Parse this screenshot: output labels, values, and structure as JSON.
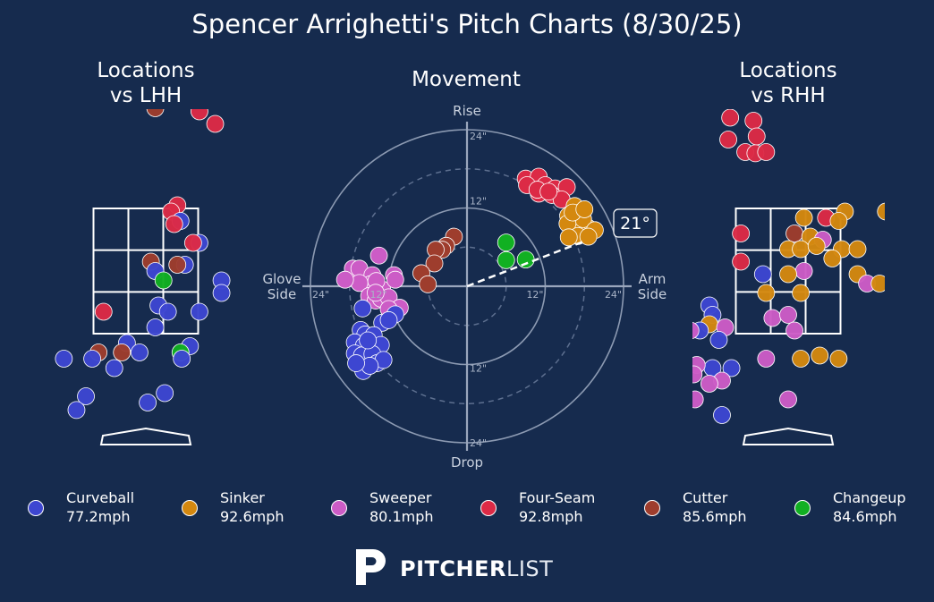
{
  "title": "Spencer Arrighetti's Pitch Charts (8/30/25)",
  "brand": {
    "bold": "PITCHER",
    "light": "LIST"
  },
  "legend": [
    {
      "name": "Curveball",
      "speed": "77.2mph",
      "color": "#3d46d1"
    },
    {
      "name": "Sinker",
      "speed": "92.6mph",
      "color": "#d4880f"
    },
    {
      "name": "Sweeper",
      "speed": "80.1mph",
      "color": "#cc5cc6"
    },
    {
      "name": "Four-Seam",
      "speed": "92.8mph",
      "color": "#dc2a46"
    },
    {
      "name": "Cutter",
      "speed": "85.6mph",
      "color": "#9e3d2d"
    },
    {
      "name": "Changeup",
      "speed": "84.6mph",
      "color": "#11b022"
    }
  ],
  "colors": {
    "Curveball": "#3d46d1",
    "Sinker": "#d4880f",
    "Sweeper": "#cc5cc6",
    "Four-Seam": "#dc2a46",
    "Cutter": "#9e3d2d",
    "Changeup": "#11b022"
  },
  "chart_data": [
    {
      "type": "scatter",
      "title": "Locations\nvs LHH",
      "title_lines": [
        "Locations",
        "vs LHH"
      ],
      "x_units": "ft (catcher view, plate_x)",
      "y_units": "ft (plate_z)",
      "xlim": [
        -2.6,
        2.6
      ],
      "ylim": [
        -0.9,
        5.6
      ],
      "strike_zone": {
        "x": [
          -0.83,
          0.83
        ],
        "z": [
          1.5,
          3.5
        ]
      },
      "points": [
        {
          "pitch": "Four-Seam",
          "x": 0.85,
          "z": 5.05
        },
        {
          "pitch": "Four-Seam",
          "x": 1.1,
          "z": 4.85
        },
        {
          "pitch": "Cutter",
          "x": 0.15,
          "z": 5.1
        },
        {
          "pitch": "Four-Seam",
          "x": 0.5,
          "z": 3.55
        },
        {
          "pitch": "Four-Seam",
          "x": 0.4,
          "z": 3.45
        },
        {
          "pitch": "Curveball",
          "x": 0.55,
          "z": 3.3
        },
        {
          "pitch": "Four-Seam",
          "x": 0.45,
          "z": 3.25
        },
        {
          "pitch": "Curveball",
          "x": 0.85,
          "z": 2.95
        },
        {
          "pitch": "Four-Seam",
          "x": 0.75,
          "z": 2.95
        },
        {
          "pitch": "Cutter",
          "x": 0.08,
          "z": 2.65
        },
        {
          "pitch": "Curveball",
          "x": 0.62,
          "z": 2.6
        },
        {
          "pitch": "Cutter",
          "x": 0.5,
          "z": 2.6
        },
        {
          "pitch": "Curveball",
          "x": 0.15,
          "z": 2.5
        },
        {
          "pitch": "Changeup",
          "x": 0.28,
          "z": 2.35
        },
        {
          "pitch": "Curveball",
          "x": 1.2,
          "z": 2.35
        },
        {
          "pitch": "Curveball",
          "x": 1.2,
          "z": 2.15
        },
        {
          "pitch": "Curveball",
          "x": 0.2,
          "z": 1.95
        },
        {
          "pitch": "Curveball",
          "x": 0.35,
          "z": 1.85
        },
        {
          "pitch": "Four-Seam",
          "x": -0.67,
          "z": 1.85
        },
        {
          "pitch": "Curveball",
          "x": 0.85,
          "z": 1.85
        },
        {
          "pitch": "Curveball",
          "x": 0.15,
          "z": 1.6
        },
        {
          "pitch": "Curveball",
          "x": -0.3,
          "z": 1.35
        },
        {
          "pitch": "Curveball",
          "x": 0.7,
          "z": 1.3
        },
        {
          "pitch": "Cutter",
          "x": -0.75,
          "z": 1.2
        },
        {
          "pitch": "Cutter",
          "x": -0.38,
          "z": 1.2
        },
        {
          "pitch": "Curveball",
          "x": -0.1,
          "z": 1.2
        },
        {
          "pitch": "Changeup",
          "x": 0.55,
          "z": 1.2
        },
        {
          "pitch": "Curveball",
          "x": 0.57,
          "z": 1.1
        },
        {
          "pitch": "Curveball",
          "x": -1.3,
          "z": 1.1
        },
        {
          "pitch": "Curveball",
          "x": -0.85,
          "z": 1.1
        },
        {
          "pitch": "Curveball",
          "x": -0.5,
          "z": 0.95
        },
        {
          "pitch": "Curveball",
          "x": -0.95,
          "z": 0.5
        },
        {
          "pitch": "Curveball",
          "x": 0.3,
          "z": 0.55
        },
        {
          "pitch": "Curveball",
          "x": 0.03,
          "z": 0.4
        },
        {
          "pitch": "Curveball",
          "x": -1.1,
          "z": 0.28
        }
      ]
    },
    {
      "type": "scatter",
      "title": "Movement",
      "x_units": "inches horizontal break",
      "y_units": "inches induced vertical break",
      "xlim": [
        -24,
        24
      ],
      "ylim": [
        -24,
        24
      ],
      "rings": [
        12,
        24
      ],
      "dashed_rings": [
        6,
        18
      ],
      "ring_labels": [
        "12\"",
        "24\"",
        "12\"",
        "24\"",
        "12\"",
        "24\"",
        "12\"",
        "24\""
      ],
      "axis_labels": {
        "top": "Rise",
        "bottom": "Drop",
        "left": "Glove\nSide",
        "right": "Arm\nSide"
      },
      "left_lines": [
        "Glove",
        "Side"
      ],
      "right_lines": [
        "Arm",
        "Side"
      ],
      "arm_angle_label": "21°",
      "arm_angle_deg": 21,
      "points": [
        {
          "pitch": "Four-Seam",
          "x": 9,
          "z": 16.5
        },
        {
          "pitch": "Four-Seam",
          "x": 11,
          "z": 16.8
        },
        {
          "pitch": "Four-Seam",
          "x": 12,
          "z": 15.5
        },
        {
          "pitch": "Four-Seam",
          "x": 13.5,
          "z": 15
        },
        {
          "pitch": "Four-Seam",
          "x": 15.3,
          "z": 15.2
        },
        {
          "pitch": "Four-Seam",
          "x": 9.2,
          "z": 15.5
        },
        {
          "pitch": "Four-Seam",
          "x": 11,
          "z": 14.2
        },
        {
          "pitch": "Four-Seam",
          "x": 13,
          "z": 14
        },
        {
          "pitch": "Four-Seam",
          "x": 14.5,
          "z": 13.3
        },
        {
          "pitch": "Four-Seam",
          "x": 10.8,
          "z": 14.8
        },
        {
          "pitch": "Four-Seam",
          "x": 12.5,
          "z": 14.5
        },
        {
          "pitch": "Sinker",
          "x": 17.2,
          "z": 9.4
        },
        {
          "pitch": "Sinker",
          "x": 18.5,
          "z": 9
        },
        {
          "pitch": "Sinker",
          "x": 16.5,
          "z": 10.8
        },
        {
          "pitch": "Sinker",
          "x": 15.5,
          "z": 10.8
        },
        {
          "pitch": "Sinker",
          "x": 16.5,
          "z": 12.3
        },
        {
          "pitch": "Sinker",
          "x": 17.5,
          "z": 11.4
        },
        {
          "pitch": "Sinker",
          "x": 16.8,
          "z": 8.7
        },
        {
          "pitch": "Sinker",
          "x": 16.2,
          "z": 9.8
        },
        {
          "pitch": "Sinker",
          "x": 17.8,
          "z": 10.3
        },
        {
          "pitch": "Sinker",
          "x": 19.6,
          "z": 8.6
        },
        {
          "pitch": "Sinker",
          "x": 15.4,
          "z": 9.6
        },
        {
          "pitch": "Sinker",
          "x": 17,
          "z": 7.7
        },
        {
          "pitch": "Sinker",
          "x": 18.6,
          "z": 7.6
        },
        {
          "pitch": "Sinker",
          "x": 15.6,
          "z": 7.5
        },
        {
          "pitch": "Sinker",
          "x": 16.2,
          "z": 11.3
        },
        {
          "pitch": "Sinker",
          "x": 18,
          "z": 11.8
        },
        {
          "pitch": "Changeup",
          "x": 6,
          "z": 6.7
        },
        {
          "pitch": "Changeup",
          "x": 6,
          "z": 4.0
        },
        {
          "pitch": "Changeup",
          "x": 9.0,
          "z": 4.1
        },
        {
          "pitch": "Cutter",
          "x": -2,
          "z": 7.6
        },
        {
          "pitch": "Cutter",
          "x": -3.2,
          "z": 6.2
        },
        {
          "pitch": "Cutter",
          "x": -3.8,
          "z": 5.6
        },
        {
          "pitch": "Cutter",
          "x": -4.8,
          "z": 5.6
        },
        {
          "pitch": "Cutter",
          "x": -5,
          "z": 3.5
        },
        {
          "pitch": "Cutter",
          "x": -7,
          "z": 2.0
        },
        {
          "pitch": "Cutter",
          "x": -6,
          "z": 0.3
        },
        {
          "pitch": "Sweeper",
          "x": -13.5,
          "z": 4.7
        },
        {
          "pitch": "Sweeper",
          "x": -17.5,
          "z": 2.7
        },
        {
          "pitch": "Sweeper",
          "x": -16.5,
          "z": 2.7
        },
        {
          "pitch": "Sweeper",
          "x": -14.5,
          "z": 1.7
        },
        {
          "pitch": "Sweeper",
          "x": -11.2,
          "z": 1.7
        },
        {
          "pitch": "Sweeper",
          "x": -14.8,
          "z": 0.3
        },
        {
          "pitch": "Sweeper",
          "x": -16.5,
          "z": 0.5
        },
        {
          "pitch": "Sweeper",
          "x": -18.7,
          "z": 1.0
        },
        {
          "pitch": "Sweeper",
          "x": -13,
          "z": -0.5
        },
        {
          "pitch": "Sweeper",
          "x": -15,
          "z": -1.5
        },
        {
          "pitch": "Sweeper",
          "x": -14,
          "z": -2.2
        },
        {
          "pitch": "Sweeper",
          "x": -13.2,
          "z": -1.9
        },
        {
          "pitch": "Sweeper",
          "x": -12,
          "z": -1.7
        },
        {
          "pitch": "Sweeper",
          "x": -11,
          "z": 1.0
        },
        {
          "pitch": "Sweeper",
          "x": -13.9,
          "z": 0.8
        },
        {
          "pitch": "Sweeper",
          "x": -10.3,
          "z": -3.3
        },
        {
          "pitch": "Sweeper",
          "x": -12,
          "z": -3.5
        },
        {
          "pitch": "Sweeper",
          "x": -14,
          "z": -1.0
        },
        {
          "pitch": "Curveball",
          "x": -16,
          "z": -3.4
        },
        {
          "pitch": "Curveball",
          "x": -11,
          "z": -4.3
        },
        {
          "pitch": "Curveball",
          "x": -13,
          "z": -5.6
        },
        {
          "pitch": "Curveball",
          "x": -12,
          "z": -5.2
        },
        {
          "pitch": "Curveball",
          "x": -16.3,
          "z": -6.7
        },
        {
          "pitch": "Curveball",
          "x": -15.6,
          "z": -7.4
        },
        {
          "pitch": "Curveball",
          "x": -14.3,
          "z": -7.5
        },
        {
          "pitch": "Curveball",
          "x": -17.2,
          "z": -8.6
        },
        {
          "pitch": "Curveball",
          "x": -15.8,
          "z": -9.1
        },
        {
          "pitch": "Curveball",
          "x": -13.2,
          "z": -9.0
        },
        {
          "pitch": "Curveball",
          "x": -17.2,
          "z": -10.3
        },
        {
          "pitch": "Curveball",
          "x": -16.1,
          "z": -10.6
        },
        {
          "pitch": "Curveball",
          "x": -14.5,
          "z": -10.4
        },
        {
          "pitch": "Curveball",
          "x": -13.8,
          "z": -11.8
        },
        {
          "pitch": "Curveball",
          "x": -12.8,
          "z": -11.3
        },
        {
          "pitch": "Curveball",
          "x": -16,
          "z": -12.6
        },
        {
          "pitch": "Curveball",
          "x": -15.9,
          "z": -13.0
        },
        {
          "pitch": "Curveball",
          "x": -14.9,
          "z": -12.2
        },
        {
          "pitch": "Curveball",
          "x": -17,
          "z": -11.8
        },
        {
          "pitch": "Curveball",
          "x": -15.2,
          "z": -8.3
        }
      ]
    },
    {
      "type": "scatter",
      "title": "Locations\nvs RHH",
      "title_lines": [
        "Locations",
        "vs RHH"
      ],
      "x_units": "ft (catcher view, plate_x)",
      "y_units": "ft (plate_z)",
      "xlim": [
        -2.6,
        2.6
      ],
      "ylim": [
        -0.9,
        5.6
      ],
      "strike_zone": {
        "x": [
          -0.83,
          0.83
        ],
        "z": [
          1.5,
          3.5
        ]
      },
      "points": [
        {
          "pitch": "Curveball",
          "x": 1.05,
          "z": 5.55
        },
        {
          "pitch": "Four-Seam",
          "x": -0.92,
          "z": 4.95
        },
        {
          "pitch": "Four-Seam",
          "x": -0.55,
          "z": 4.9
        },
        {
          "pitch": "Four-Seam",
          "x": -0.5,
          "z": 4.65
        },
        {
          "pitch": "Four-Seam",
          "x": -0.95,
          "z": 4.6
        },
        {
          "pitch": "Four-Seam",
          "x": -0.68,
          "z": 4.4
        },
        {
          "pitch": "Four-Seam",
          "x": -0.52,
          "z": 4.38
        },
        {
          "pitch": "Four-Seam",
          "x": -0.35,
          "z": 4.4
        },
        {
          "pitch": "Four-Seam",
          "x": -2.18,
          "z": 4.25
        },
        {
          "pitch": "Sinker",
          "x": 0.9,
          "z": 3.45
        },
        {
          "pitch": "Sinker",
          "x": 1.55,
          "z": 3.45
        },
        {
          "pitch": "Sinker",
          "x": 0.25,
          "z": 3.35
        },
        {
          "pitch": "Four-Seam",
          "x": 0.6,
          "z": 3.35
        },
        {
          "pitch": "Sinker",
          "x": 0.8,
          "z": 3.3
        },
        {
          "pitch": "Sinker",
          "x": 1.75,
          "z": 3.2
        },
        {
          "pitch": "Curveball",
          "x": 1.7,
          "z": 3.1
        },
        {
          "pitch": "Sinker",
          "x": 1.95,
          "z": 3.1
        },
        {
          "pitch": "Four-Seam",
          "x": -0.75,
          "z": 3.1
        },
        {
          "pitch": "Cutter",
          "x": 0.1,
          "z": 3.1
        },
        {
          "pitch": "Sinker",
          "x": 0.35,
          "z": 3.05
        },
        {
          "pitch": "Sweeper",
          "x": 0.55,
          "z": 3.0
        },
        {
          "pitch": "Sinker",
          "x": 0,
          "z": 2.85
        },
        {
          "pitch": "Sinker",
          "x": 0.2,
          "z": 2.85
        },
        {
          "pitch": "Sinker",
          "x": 0.45,
          "z": 2.9
        },
        {
          "pitch": "Sinker",
          "x": 0.85,
          "z": 2.85
        },
        {
          "pitch": "Sinker",
          "x": 1.1,
          "z": 2.85
        },
        {
          "pitch": "Sinker",
          "x": 0.7,
          "z": 2.7
        },
        {
          "pitch": "Four-Seam",
          "x": -0.75,
          "z": 2.65
        },
        {
          "pitch": "Sweeper",
          "x": 0.25,
          "z": 2.5
        },
        {
          "pitch": "Curveball",
          "x": -0.4,
          "z": 2.45
        },
        {
          "pitch": "Sinker",
          "x": 0,
          "z": 2.45
        },
        {
          "pitch": "Sinker",
          "x": 1.1,
          "z": 2.45
        },
        {
          "pitch": "Sweeper",
          "x": 1.25,
          "z": 2.3
        },
        {
          "pitch": "Sinker",
          "x": 1.45,
          "z": 2.3
        },
        {
          "pitch": "Sinker",
          "x": -0.35,
          "z": 2.15
        },
        {
          "pitch": "Sinker",
          "x": 0.2,
          "z": 2.15
        },
        {
          "pitch": "Curveball",
          "x": -1.25,
          "z": 1.95
        },
        {
          "pitch": "Curveball",
          "x": -1.2,
          "z": 1.8
        },
        {
          "pitch": "Sweeper",
          "x": -0.25,
          "z": 1.75
        },
        {
          "pitch": "Sweeper",
          "x": 0,
          "z": 1.8
        },
        {
          "pitch": "Sinker",
          "x": -1.25,
          "z": 1.65
        },
        {
          "pitch": "Sweeper",
          "x": -1.0,
          "z": 1.6
        },
        {
          "pitch": "Curveball",
          "x": -1.4,
          "z": 1.55
        },
        {
          "pitch": "Sweeper",
          "x": -1.55,
          "z": 1.55
        },
        {
          "pitch": "Curveball",
          "x": -1.1,
          "z": 1.4
        },
        {
          "pitch": "Sweeper",
          "x": 0.1,
          "z": 1.55
        },
        {
          "pitch": "Sinker",
          "x": 0.2,
          "z": 1.1
        },
        {
          "pitch": "Sinker",
          "x": 0.5,
          "z": 1.15
        },
        {
          "pitch": "Sinker",
          "x": 0.8,
          "z": 1.1
        },
        {
          "pitch": "Sweeper",
          "x": -0.35,
          "z": 1.1
        },
        {
          "pitch": "Curveball",
          "x": -1.2,
          "z": 0.95
        },
        {
          "pitch": "Curveball",
          "x": -0.9,
          "z": 0.95
        },
        {
          "pitch": "Sweeper",
          "x": -1.45,
          "z": 1.0
        },
        {
          "pitch": "Sweeper",
          "x": -1.5,
          "z": 0.85
        },
        {
          "pitch": "Sweeper",
          "x": -1.05,
          "z": 0.75
        },
        {
          "pitch": "Sweeper",
          "x": -1.25,
          "z": 0.7
        },
        {
          "pitch": "Sweeper",
          "x": -1.48,
          "z": 0.45
        },
        {
          "pitch": "Sweeper",
          "x": 0,
          "z": 0.45
        },
        {
          "pitch": "Curveball",
          "x": -1.05,
          "z": 0.2
        }
      ]
    }
  ]
}
